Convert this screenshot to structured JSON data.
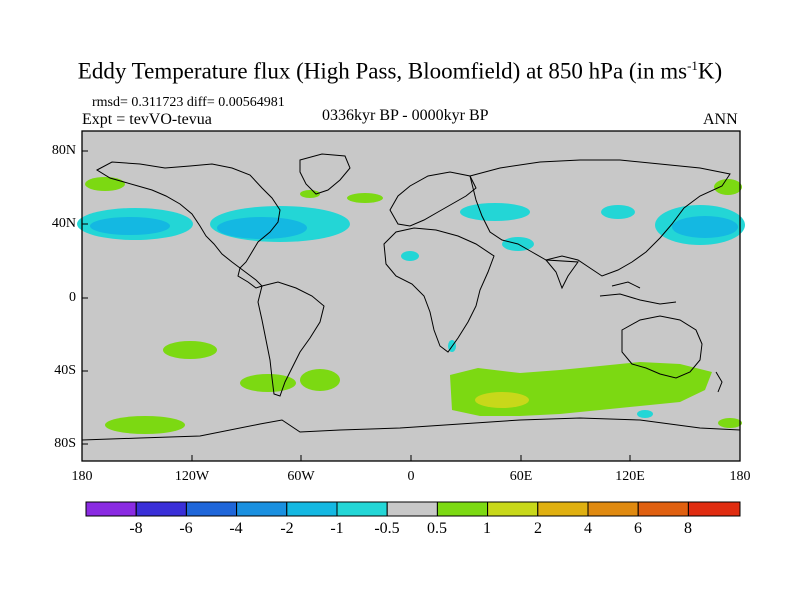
{
  "title_main": "Eddy Temperature flux (High Pass, Bloomfield) at 850 hPa (in ms",
  "title_sup": "-1",
  "title_end": "K)",
  "stats": "rmsd= 0.311723 diff= 0.00564981",
  "expt": "Expt = tevVO-tevua",
  "period": "0336kyr BP - 0000kyr BP",
  "season": "ANN",
  "lat_labels": [
    "80N",
    "40N",
    "0",
    "40S",
    "80S"
  ],
  "lon_labels": [
    "180",
    "120W",
    "60W",
    "0",
    "60E",
    "120E",
    "180"
  ],
  "colorbar": {
    "labels": [
      "-8",
      "-6",
      "-4",
      "-2",
      "-1",
      "-0.5",
      "0.5",
      "1",
      "2",
      "4",
      "6",
      "8"
    ],
    "colors": [
      "#8a2be2",
      "#3a2fd8",
      "#1f66d9",
      "#1a90e0",
      "#14b8e2",
      "#23d6d6",
      "#c8c8c8",
      "#7cd912",
      "#c8d81a",
      "#e0b010",
      "#e08a10",
      "#e06010",
      "#e02c10"
    ]
  },
  "map_colors": {
    "background": "#c8c8c8",
    "positive_small": "#7cd912",
    "positive_mid": "#c8d81a",
    "negative_small": "#23d6d6",
    "negative_mid": "#14b8e2"
  }
}
